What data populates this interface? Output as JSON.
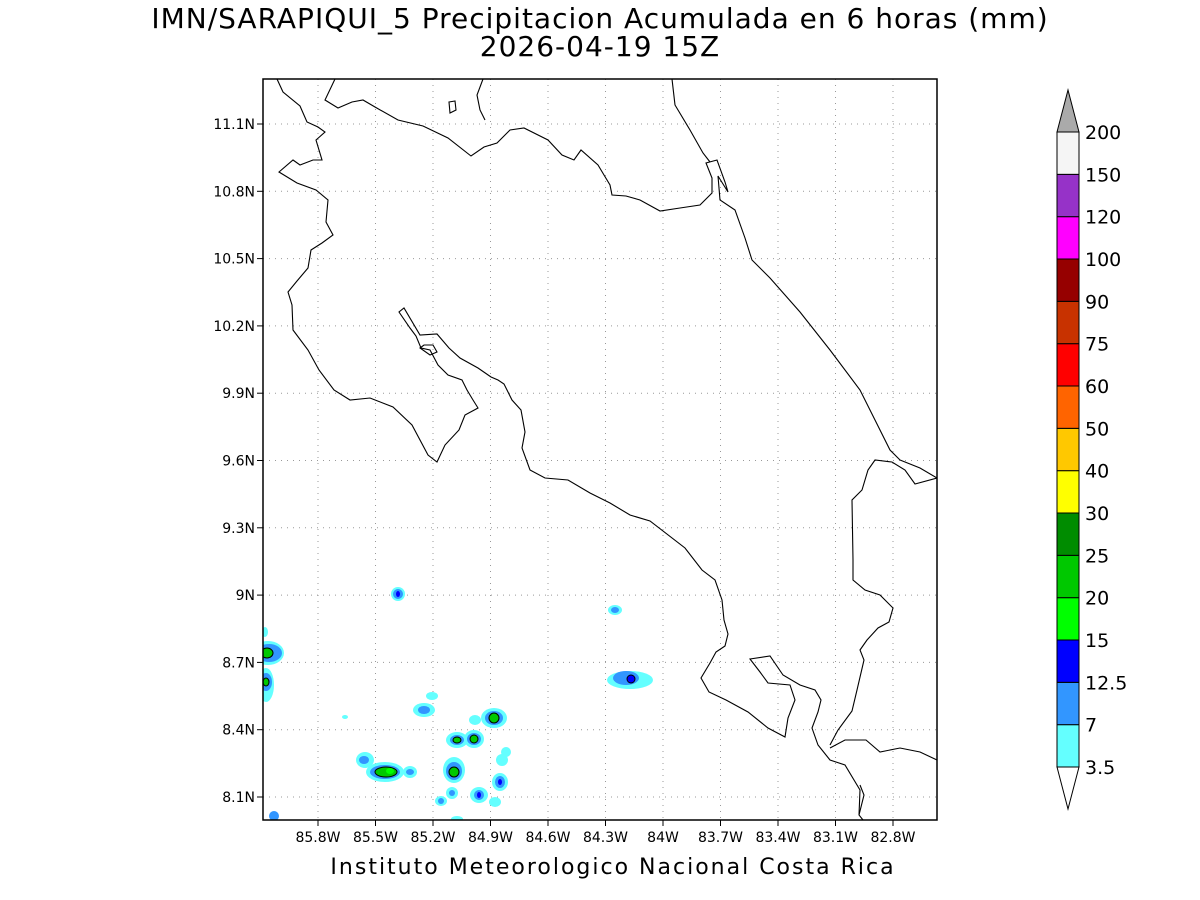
{
  "header": {
    "title": "IMN/SARAPIQUI_5 Precipitacion Acumulada en 6 horas (mm)",
    "subtitle": "2026-04-19 15Z"
  },
  "map": {
    "lat_ticks": [
      "11.1N",
      "10.8N",
      "10.5N",
      "10.2N",
      "9.9N",
      "9.6N",
      "9.3N",
      "9N",
      "8.7N",
      "8.4N",
      "8.1N"
    ],
    "lat_values": [
      11.1,
      10.8,
      10.5,
      10.2,
      9.9,
      9.6,
      9.3,
      9.0,
      8.7,
      8.4,
      8.1
    ],
    "lon_ticks": [
      "85.8W",
      "85.5W",
      "85.2W",
      "84.9W",
      "84.6W",
      "84.3W",
      "84W",
      "83.7W",
      "83.4W",
      "83.1W",
      "82.8W"
    ],
    "lon_values": [
      -85.8,
      -85.5,
      -85.2,
      -84.9,
      -84.6,
      -84.3,
      -84.0,
      -83.7,
      -83.4,
      -83.1,
      -82.8
    ],
    "lat_range": [
      8.0,
      11.3
    ],
    "lon_range": [
      -86.0,
      -83.0
    ],
    "grid": true
  },
  "legend": {
    "levels": [
      "3.5",
      "7",
      "12.5",
      "15",
      "20",
      "25",
      "30",
      "40",
      "50",
      "60",
      "75",
      "90",
      "100",
      "120",
      "150",
      "200"
    ],
    "colors": [
      "#64ffff",
      "#3296ff",
      "#0000ff",
      "#00ff00",
      "#00c800",
      "#008c00",
      "#ffff00",
      "#ffc800",
      "#ff6400",
      "#ff0000",
      "#c83200",
      "#960000",
      "#ff00ff",
      "#9632c8",
      "#f5f5f5"
    ],
    "top_arrow_color": "#aaaaaa",
    "bottom_arrow_color": "#ffffff"
  },
  "footer": {
    "text": "Instituto Meteorologico Nacional Costa Rica"
  }
}
